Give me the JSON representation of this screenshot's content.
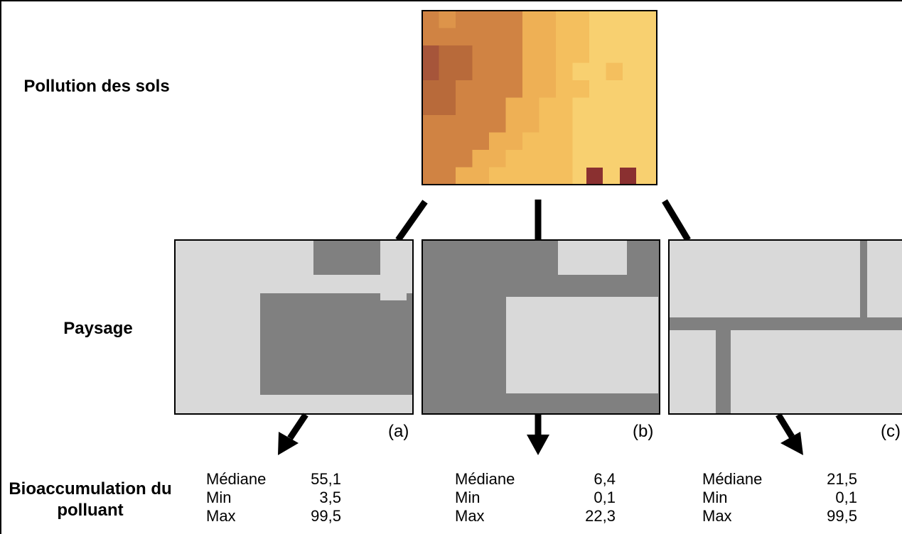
{
  "row_labels": {
    "pollution": "Pollution des sols",
    "paysage": "Paysage",
    "bioaccumulation": "Bioaccumulation du polluant"
  },
  "colors": {
    "pollution_levels": [
      "#f8d070",
      "#f4bf5e",
      "#eeb055",
      "#dd944a",
      "#d08343",
      "#b86a3a",
      "#a6553a",
      "#8a3030"
    ],
    "landscape_light": "#d9d9d9",
    "landscape_dark": "#808080"
  },
  "panels": [
    {
      "letter": "(a)",
      "stats": [
        {
          "name": "Médiane",
          "value": "55,1"
        },
        {
          "name": "Min",
          "value": "3,5"
        },
        {
          "name": "Max",
          "value": "99,5"
        }
      ]
    },
    {
      "letter": "(b)",
      "stats": [
        {
          "name": "Médiane",
          "value": "6,4"
        },
        {
          "name": "Min",
          "value": "0,1"
        },
        {
          "name": "Max",
          "value": "22,3"
        }
      ]
    },
    {
      "letter": "(c)",
      "stats": [
        {
          "name": "Médiane",
          "value": "21,5"
        },
        {
          "name": "Min",
          "value": "0,1"
        },
        {
          "name": "Max",
          "value": "99,5"
        }
      ]
    }
  ]
}
